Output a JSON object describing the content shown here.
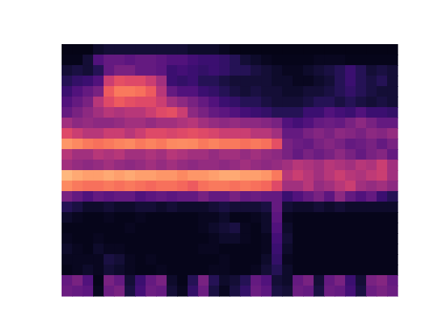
{
  "chart_data": {
    "type": "heatmap",
    "color": "magma",
    "tick_labels": false,
    "zlim": [
      0,
      1
    ],
    "cells": [
      [
        0.04,
        0.04,
        0.04,
        0.08,
        0.1,
        0.1,
        0.1,
        0.1,
        0.1,
        0.1,
        0.1,
        0.1,
        0.08,
        0.08,
        0.08,
        0.06,
        0.04,
        0.04,
        0.04,
        0.04,
        0.04,
        0.04,
        0.04,
        0.04,
        0.04,
        0.04,
        0.04,
        0.04,
        0.04,
        0.04,
        0.04,
        0.04
      ],
      [
        0.05,
        0.05,
        0.1,
        0.25,
        0.3,
        0.3,
        0.28,
        0.3,
        0.3,
        0.28,
        0.25,
        0.25,
        0.22,
        0.2,
        0.2,
        0.18,
        0.15,
        0.1,
        0.08,
        0.06,
        0.05,
        0.05,
        0.05,
        0.05,
        0.06,
        0.06,
        0.06,
        0.05,
        0.05,
        0.05,
        0.05,
        0.05
      ],
      [
        0.1,
        0.12,
        0.1,
        0.15,
        0.3,
        0.35,
        0.35,
        0.3,
        0.3,
        0.28,
        0.2,
        0.22,
        0.2,
        0.18,
        0.2,
        0.18,
        0.15,
        0.15,
        0.12,
        0.1,
        0.08,
        0.06,
        0.06,
        0.08,
        0.1,
        0.12,
        0.15,
        0.2,
        0.15,
        0.1,
        0.12,
        0.1
      ],
      [
        0.15,
        0.18,
        0.2,
        0.25,
        0.55,
        0.62,
        0.6,
        0.6,
        0.55,
        0.45,
        0.2,
        0.18,
        0.2,
        0.15,
        0.15,
        0.12,
        0.1,
        0.1,
        0.1,
        0.1,
        0.08,
        0.08,
        0.06,
        0.06,
        0.08,
        0.1,
        0.15,
        0.2,
        0.15,
        0.12,
        0.15,
        0.1
      ],
      [
        0.2,
        0.25,
        0.3,
        0.35,
        0.65,
        0.72,
        0.72,
        0.7,
        0.65,
        0.5,
        0.3,
        0.25,
        0.25,
        0.2,
        0.18,
        0.15,
        0.12,
        0.1,
        0.12,
        0.1,
        0.1,
        0.08,
        0.08,
        0.1,
        0.1,
        0.12,
        0.15,
        0.18,
        0.15,
        0.12,
        0.1,
        0.1
      ],
      [
        0.25,
        0.3,
        0.35,
        0.5,
        0.6,
        0.65,
        0.62,
        0.6,
        0.6,
        0.55,
        0.45,
        0.4,
        0.35,
        0.3,
        0.25,
        0.2,
        0.18,
        0.15,
        0.15,
        0.12,
        0.1,
        0.1,
        0.1,
        0.12,
        0.15,
        0.15,
        0.12,
        0.15,
        0.12,
        0.1,
        0.12,
        0.1
      ],
      [
        0.3,
        0.35,
        0.4,
        0.45,
        0.5,
        0.48,
        0.5,
        0.5,
        0.55,
        0.6,
        0.62,
        0.55,
        0.4,
        0.35,
        0.3,
        0.28,
        0.25,
        0.22,
        0.2,
        0.18,
        0.15,
        0.15,
        0.15,
        0.2,
        0.2,
        0.25,
        0.22,
        0.2,
        0.25,
        0.2,
        0.2,
        0.18
      ],
      [
        0.45,
        0.4,
        0.42,
        0.4,
        0.4,
        0.42,
        0.45,
        0.45,
        0.42,
        0.45,
        0.45,
        0.48,
        0.5,
        0.45,
        0.42,
        0.4,
        0.42,
        0.4,
        0.4,
        0.38,
        0.35,
        0.25,
        0.22,
        0.25,
        0.3,
        0.32,
        0.3,
        0.35,
        0.4,
        0.35,
        0.3,
        0.3
      ],
      [
        0.6,
        0.55,
        0.5,
        0.5,
        0.55,
        0.55,
        0.5,
        0.55,
        0.6,
        0.6,
        0.58,
        0.6,
        0.62,
        0.6,
        0.58,
        0.55,
        0.55,
        0.55,
        0.5,
        0.5,
        0.45,
        0.3,
        0.3,
        0.35,
        0.38,
        0.35,
        0.4,
        0.38,
        0.35,
        0.4,
        0.38,
        0.42
      ],
      [
        0.78,
        0.75,
        0.72,
        0.7,
        0.72,
        0.74,
        0.75,
        0.72,
        0.74,
        0.72,
        0.75,
        0.76,
        0.75,
        0.72,
        0.74,
        0.72,
        0.72,
        0.7,
        0.72,
        0.7,
        0.62,
        0.35,
        0.32,
        0.3,
        0.35,
        0.38,
        0.35,
        0.3,
        0.32,
        0.35,
        0.3,
        0.35
      ],
      [
        0.5,
        0.45,
        0.45,
        0.5,
        0.48,
        0.5,
        0.45,
        0.45,
        0.48,
        0.45,
        0.5,
        0.48,
        0.45,
        0.45,
        0.42,
        0.45,
        0.45,
        0.42,
        0.45,
        0.42,
        0.4,
        0.35,
        0.3,
        0.35,
        0.32,
        0.35,
        0.4,
        0.35,
        0.3,
        0.35,
        0.38,
        0.3
      ],
      [
        0.45,
        0.42,
        0.4,
        0.42,
        0.45,
        0.42,
        0.4,
        0.42,
        0.45,
        0.42,
        0.45,
        0.42,
        0.4,
        0.42,
        0.42,
        0.4,
        0.42,
        0.45,
        0.42,
        0.4,
        0.42,
        0.45,
        0.5,
        0.48,
        0.45,
        0.5,
        0.48,
        0.45,
        0.5,
        0.48,
        0.55,
        0.45
      ],
      [
        0.85,
        0.82,
        0.8,
        0.8,
        0.82,
        0.8,
        0.82,
        0.8,
        0.8,
        0.78,
        0.78,
        0.75,
        0.78,
        0.78,
        0.8,
        0.82,
        0.82,
        0.8,
        0.8,
        0.78,
        0.72,
        0.5,
        0.55,
        0.5,
        0.45,
        0.5,
        0.55,
        0.5,
        0.48,
        0.52,
        0.55,
        0.45
      ],
      [
        0.75,
        0.72,
        0.7,
        0.7,
        0.72,
        0.7,
        0.72,
        0.7,
        0.68,
        0.7,
        0.7,
        0.68,
        0.65,
        0.7,
        0.72,
        0.72,
        0.7,
        0.72,
        0.7,
        0.68,
        0.6,
        0.45,
        0.45,
        0.5,
        0.42,
        0.45,
        0.5,
        0.55,
        0.45,
        0.42,
        0.45,
        0.4
      ],
      [
        0.35,
        0.3,
        0.25,
        0.3,
        0.28,
        0.3,
        0.3,
        0.25,
        0.28,
        0.3,
        0.28,
        0.3,
        0.3,
        0.35,
        0.3,
        0.3,
        0.35,
        0.3,
        0.32,
        0.3,
        0.3,
        0.2,
        0.25,
        0.3,
        0.35,
        0.28,
        0.4,
        0.3,
        0.25,
        0.3,
        0.2,
        0.15
      ],
      [
        0.15,
        0.12,
        0.08,
        0.08,
        0.1,
        0.08,
        0.08,
        0.1,
        0.1,
        0.08,
        0.1,
        0.08,
        0.08,
        0.08,
        0.1,
        0.12,
        0.1,
        0.1,
        0.1,
        0.12,
        0.3,
        0.1,
        0.08,
        0.08,
        0.1,
        0.08,
        0.1,
        0.08,
        0.08,
        0.08,
        0.08,
        0.08
      ],
      [
        0.08,
        0.06,
        0.05,
        0.05,
        0.06,
        0.05,
        0.05,
        0.06,
        0.05,
        0.05,
        0.05,
        0.05,
        0.05,
        0.06,
        0.06,
        0.08,
        0.05,
        0.05,
        0.06,
        0.08,
        0.28,
        0.06,
        0.05,
        0.05,
        0.05,
        0.05,
        0.05,
        0.05,
        0.05,
        0.05,
        0.05,
        0.05
      ],
      [
        0.05,
        0.05,
        0.05,
        0.05,
        0.05,
        0.05,
        0.06,
        0.05,
        0.05,
        0.05,
        0.05,
        0.05,
        0.05,
        0.06,
        0.08,
        0.1,
        0.12,
        0.06,
        0.05,
        0.08,
        0.25,
        0.08,
        0.05,
        0.05,
        0.05,
        0.05,
        0.05,
        0.05,
        0.05,
        0.05,
        0.05,
        0.05
      ],
      [
        0.06,
        0.05,
        0.05,
        0.06,
        0.05,
        0.05,
        0.05,
        0.05,
        0.05,
        0.05,
        0.05,
        0.05,
        0.05,
        0.05,
        0.06,
        0.08,
        0.08,
        0.06,
        0.05,
        0.06,
        0.22,
        0.1,
        0.05,
        0.05,
        0.05,
        0.05,
        0.05,
        0.05,
        0.05,
        0.05,
        0.05,
        0.05
      ],
      [
        0.08,
        0.06,
        0.05,
        0.08,
        0.06,
        0.06,
        0.05,
        0.05,
        0.05,
        0.05,
        0.05,
        0.05,
        0.05,
        0.06,
        0.06,
        0.05,
        0.05,
        0.05,
        0.05,
        0.06,
        0.2,
        0.08,
        0.05,
        0.05,
        0.05,
        0.05,
        0.05,
        0.05,
        0.05,
        0.05,
        0.05,
        0.05
      ],
      [
        0.06,
        0.06,
        0.06,
        0.06,
        0.12,
        0.1,
        0.06,
        0.05,
        0.06,
        0.05,
        0.05,
        0.05,
        0.05,
        0.05,
        0.05,
        0.06,
        0.05,
        0.05,
        0.05,
        0.08,
        0.18,
        0.06,
        0.05,
        0.05,
        0.05,
        0.05,
        0.05,
        0.05,
        0.05,
        0.05,
        0.05,
        0.05
      ],
      [
        0.05,
        0.06,
        0.08,
        0.06,
        0.1,
        0.08,
        0.06,
        0.05,
        0.05,
        0.06,
        0.05,
        0.05,
        0.05,
        0.05,
        0.06,
        0.06,
        0.05,
        0.05,
        0.06,
        0.1,
        0.15,
        0.08,
        0.05,
        0.05,
        0.05,
        0.05,
        0.05,
        0.05,
        0.05,
        0.05,
        0.05,
        0.05
      ],
      [
        0.3,
        0.35,
        0.25,
        0.05,
        0.35,
        0.3,
        0.1,
        0.2,
        0.3,
        0.35,
        0.08,
        0.05,
        0.15,
        0.35,
        0.15,
        0.08,
        0.1,
        0.15,
        0.3,
        0.25,
        0.1,
        0.08,
        0.3,
        0.35,
        0.1,
        0.3,
        0.35,
        0.2,
        0.1,
        0.35,
        0.38,
        0.3
      ],
      [
        0.32,
        0.3,
        0.28,
        0.06,
        0.32,
        0.35,
        0.12,
        0.22,
        0.32,
        0.3,
        0.1,
        0.06,
        0.18,
        0.32,
        0.12,
        0.06,
        0.12,
        0.18,
        0.32,
        0.28,
        0.12,
        0.1,
        0.32,
        0.3,
        0.12,
        0.32,
        0.3,
        0.22,
        0.12,
        0.32,
        0.35,
        0.32
      ]
    ]
  }
}
